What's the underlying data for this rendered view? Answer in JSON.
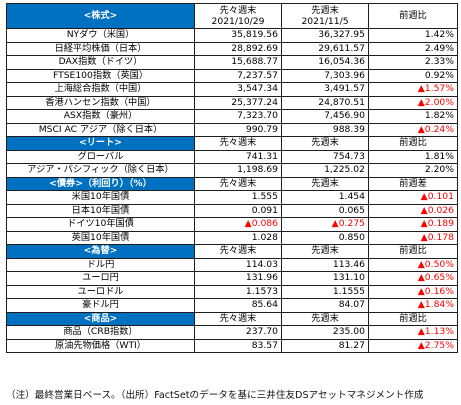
{
  "sections": [
    {
      "title": "<株式>",
      "headers": [
        "先々週末\n2021/10/29",
        "先週末\n2021/11/5",
        "前週比"
      ],
      "rows": [
        [
          "NYダウ（米国）",
          "35,819.56",
          "36,327.95",
          "1.42%",
          false
        ],
        [
          "日経平均株価（日本）",
          "28,892.69",
          "29,611.57",
          "2.49%",
          false
        ],
        [
          "DAX指数（ドイツ）",
          "15,688.77",
          "16,054.36",
          "2.33%",
          false
        ],
        [
          "FTSE100指数（英国）",
          "7,237.57",
          "7,303.96",
          "0.92%",
          false
        ],
        [
          "上海総合指数（中国）",
          "3,547.34",
          "3,491.57",
          "▲1.57%",
          true
        ],
        [
          "香港ハンセン指数（中国）",
          "25,377.24",
          "24,870.51",
          "▲2.00%",
          true
        ],
        [
          "ASX指数（豪州）",
          "7,323.70",
          "7,456.90",
          "1.82%",
          false
        ],
        [
          "MSCI AC アジア（除く日本）",
          "990.79",
          "988.39",
          "▲0.24%",
          true
        ]
      ]
    },
    {
      "title": "<リート>",
      "headers": [
        "先々週末",
        "先週末",
        "前週比"
      ],
      "rows": [
        [
          "グローバル",
          "741.31",
          "754.73",
          "1.81%",
          false
        ],
        [
          "アジア・パシフィック（除く日本）",
          "1,198.69",
          "1,225.02",
          "2.20%",
          false
        ]
      ]
    },
    {
      "title": "<債券>（利回り）（%）",
      "headers": [
        "先々週末",
        "先週末",
        "前週差"
      ],
      "rows": [
        [
          "米国10年国債",
          "1.555",
          "1.454",
          "▲0.101",
          true
        ],
        [
          "日本10年国債",
          "0.091",
          "0.065",
          "▲0.026",
          true
        ],
        [
          "ドイツ10年国債",
          "▲0.086",
          "▲0.275",
          "▲0.189",
          true
        ],
        [
          "英国10年国債",
          "1.028",
          "0.850",
          "▲0.178",
          true
        ]
      ]
    },
    {
      "title": "<為替>",
      "headers": [
        "先々週末",
        "先週末",
        "前週比"
      ],
      "rows": [
        [
          "ドル円",
          "114.03",
          "113.46",
          "▲0.50%",
          true
        ],
        [
          "ユーロ円",
          "131.96",
          "131.10",
          "▲0.65%",
          true
        ],
        [
          "ユーロドル",
          "1.1573",
          "1.1555",
          "▲0.16%",
          true
        ],
        [
          "豪ドル円",
          "85.64",
          "84.07",
          "▲1.84%",
          true
        ]
      ]
    },
    {
      "title": "<商品>",
      "headers": [
        "先々週末",
        "先週末",
        "前週比"
      ],
      "rows": [
        [
          "商品（CRB指数）",
          "237.70",
          "235.00",
          "▲1.13%",
          true
        ],
        [
          "原油先物価格（WTI）",
          "83.57",
          "81.27",
          "▲2.75%",
          true
        ]
      ]
    }
  ],
  "note": "（注）最終営業日ベース。（出所）FactSetのデータを基に三井住友DSアセットマネジメント作成",
  "colors": {
    "section_header_bg": "#0070c0",
    "section_header_text": "#ffffff",
    "negative_text": "#ff0000",
    "border": "#1e1e1e"
  }
}
